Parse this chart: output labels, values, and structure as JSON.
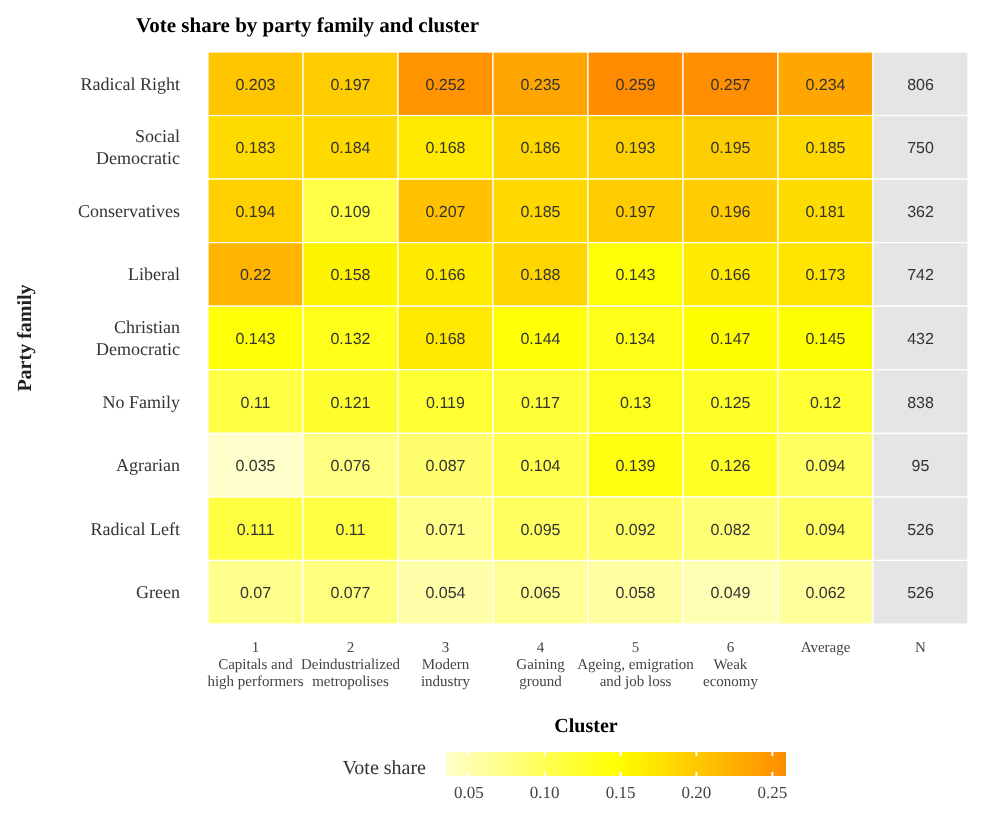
{
  "chart_data": {
    "type": "heatmap",
    "title": "Vote share by party family and cluster",
    "xlabel": "Cluster",
    "ylabel": "Party family",
    "clabel": "Vote share",
    "categories": [
      "1\nCapitals and\nhigh performers",
      "2\nDeindustrialized\nmetropolises",
      "3\nModern\nindustry",
      "4\nGaining\nground",
      "5\nAgeing, emigration\nand job loss",
      "6\nWeak\neconomy",
      "Average",
      "N"
    ],
    "y_categories": [
      "Radical Right",
      "Social\nDemocratic",
      "Conservatives",
      "Liberal",
      "Christian\nDemocratic",
      "No Family",
      "Agrarian",
      "Radical Left",
      "Green"
    ],
    "cells": [
      [
        0.203,
        0.197,
        0.252,
        0.235,
        0.259,
        0.257,
        0.234,
        null
      ],
      [
        0.183,
        0.184,
        0.168,
        0.186,
        0.193,
        0.195,
        0.185,
        null
      ],
      [
        0.194,
        0.109,
        0.207,
        0.185,
        0.197,
        0.196,
        0.181,
        null
      ],
      [
        0.22,
        0.158,
        0.166,
        0.188,
        0.143,
        0.166,
        0.173,
        null
      ],
      [
        0.143,
        0.132,
        0.168,
        0.144,
        0.134,
        0.147,
        0.145,
        null
      ],
      [
        0.11,
        0.121,
        0.119,
        0.117,
        0.13,
        0.125,
        0.12,
        null
      ],
      [
        0.035,
        0.076,
        0.087,
        0.104,
        0.139,
        0.126,
        0.094,
        null
      ],
      [
        0.111,
        0.11,
        0.071,
        0.095,
        0.092,
        0.082,
        0.094,
        null
      ],
      [
        0.07,
        0.077,
        0.054,
        0.065,
        0.058,
        0.049,
        0.062,
        null
      ]
    ],
    "cell_labels": [
      [
        "0.203",
        "0.197",
        "0.252",
        "0.235",
        "0.259",
        "0.257",
        "0.234",
        "806"
      ],
      [
        "0.183",
        "0.184",
        "0.168",
        "0.186",
        "0.193",
        "0.195",
        "0.185",
        "750"
      ],
      [
        "0.194",
        "0.109",
        "0.207",
        "0.185",
        "0.197",
        "0.196",
        "0.181",
        "362"
      ],
      [
        "0.22",
        "0.158",
        "0.166",
        "0.188",
        "0.143",
        "0.166",
        "0.173",
        "742"
      ],
      [
        "0.143",
        "0.132",
        "0.168",
        "0.144",
        "0.134",
        "0.147",
        "0.145",
        "432"
      ],
      [
        "0.11",
        "0.121",
        "0.119",
        "0.117",
        "0.13",
        "0.125",
        "0.12",
        "838"
      ],
      [
        "0.035",
        "0.076",
        "0.087",
        "0.104",
        "0.139",
        "0.126",
        "0.094",
        "95"
      ],
      [
        "0.111",
        "0.11",
        "0.071",
        "0.095",
        "0.092",
        "0.082",
        "0.094",
        "526"
      ],
      [
        "0.07",
        "0.077",
        "0.054",
        "0.065",
        "0.058",
        "0.049",
        "0.062",
        "526"
      ]
    ],
    "data_labels": true,
    "colors": [
      "#ffffcc",
      "#ffff00",
      "#ff8c00"
    ],
    "clim": [
      0.035,
      0.259
    ],
    "cticks": [
      {
        "value": 0.05,
        "label": "0.05"
      },
      {
        "value": 0.1,
        "label": "0.10"
      },
      {
        "value": 0.15,
        "label": "0.15"
      },
      {
        "value": 0.2,
        "label": "0.20"
      },
      {
        "value": 0.25,
        "label": "0.25"
      }
    ]
  }
}
